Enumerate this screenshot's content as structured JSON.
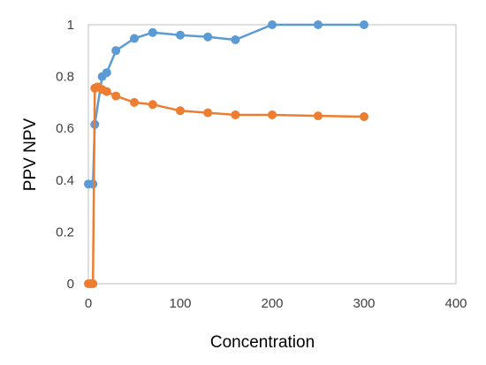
{
  "chart_data": {
    "type": "scatter",
    "title": "",
    "xlabel": "Concentration",
    "ylabel": "PPV  NPV",
    "xlim": [
      0,
      400
    ],
    "ylim": [
      0,
      1
    ],
    "x_ticks": [
      0,
      100,
      200,
      300,
      400
    ],
    "y_ticks": [
      0,
      0.2,
      0.4,
      0.6,
      0.8,
      1
    ],
    "x_tick_labels": [
      "0",
      "100",
      "200",
      "300",
      "400"
    ],
    "y_tick_labels": [
      "0",
      "0.2",
      "0.4",
      "0.6",
      "0.8",
      "1"
    ],
    "grid": false,
    "legend": "none",
    "series": [
      {
        "color": "#5b9bd5",
        "points": [
          [
            0,
            0.385
          ],
          [
            5,
            0.385
          ],
          [
            7,
            0.615
          ],
          [
            15,
            0.8
          ],
          [
            20,
            0.815
          ],
          [
            30,
            0.9
          ],
          [
            50,
            0.947
          ],
          [
            70,
            0.97
          ],
          [
            100,
            0.96
          ],
          [
            130,
            0.953
          ],
          [
            160,
            0.942
          ],
          [
            200,
            1.0
          ],
          [
            250,
            1.0
          ],
          [
            300,
            1.0
          ]
        ]
      },
      {
        "color": "#ed7d31",
        "points": [
          [
            0,
            0
          ],
          [
            3,
            0
          ],
          [
            5,
            0
          ],
          [
            7,
            0.755
          ],
          [
            10,
            0.76
          ],
          [
            15,
            0.75
          ],
          [
            20,
            0.742
          ],
          [
            30,
            0.725
          ],
          [
            50,
            0.7
          ],
          [
            70,
            0.692
          ],
          [
            100,
            0.668
          ],
          [
            130,
            0.66
          ],
          [
            160,
            0.652
          ],
          [
            200,
            0.652
          ],
          [
            250,
            0.648
          ],
          [
            300,
            0.645
          ]
        ]
      }
    ]
  }
}
